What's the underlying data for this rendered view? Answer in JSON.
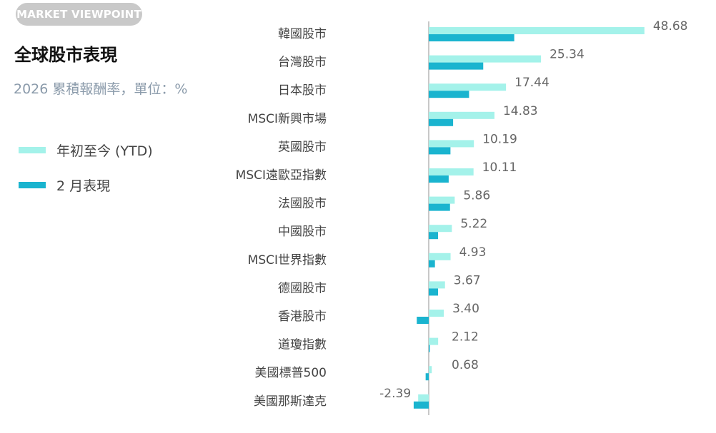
{
  "header": {
    "badge": "MARKET VIEWPOINT",
    "title": "全球股市表現",
    "subtitle": "2026 累積報酬率，單位：%"
  },
  "colors": {
    "ytd": "#a4f2ea",
    "feb": "#1ab4cf",
    "axis": "#b5b5b5",
    "category_text": "#444444",
    "value_text": "#666666"
  },
  "chart_data": {
    "type": "bar",
    "orientation": "horizontal",
    "categories": [
      "韓國股市",
      "台灣股市",
      "日本股市",
      "MSCI新興市場",
      "英國股市",
      "MSCI遠歐亞指數",
      "法國股市",
      "中國股市",
      "MSCI世界指數",
      "德國股市",
      "香港股市",
      "道瓊指數",
      "美國標普500",
      "美國那斯達克"
    ],
    "series": [
      {
        "name": "年初至今 (YTD)",
        "values": [
          48.68,
          25.34,
          17.44,
          14.83,
          10.19,
          10.11,
          5.86,
          5.22,
          4.93,
          3.67,
          3.4,
          2.12,
          0.68,
          -2.39
        ],
        "labels": [
          "48.68",
          "25.34",
          "17.44",
          "14.83",
          "10.19",
          "10.11",
          "5.86",
          "5.22",
          "4.93",
          "3.67",
          "3.40",
          "2.12",
          "0.68",
          "-2.39"
        ]
      },
      {
        "name": "2 月表現",
        "values": [
          19.3,
          12.3,
          9.1,
          5.5,
          4.9,
          4.5,
          4.8,
          2.1,
          1.4,
          2.1,
          -2.7,
          0.2,
          -0.7,
          -3.4
        ]
      }
    ],
    "legend": "left",
    "grid": false
  }
}
